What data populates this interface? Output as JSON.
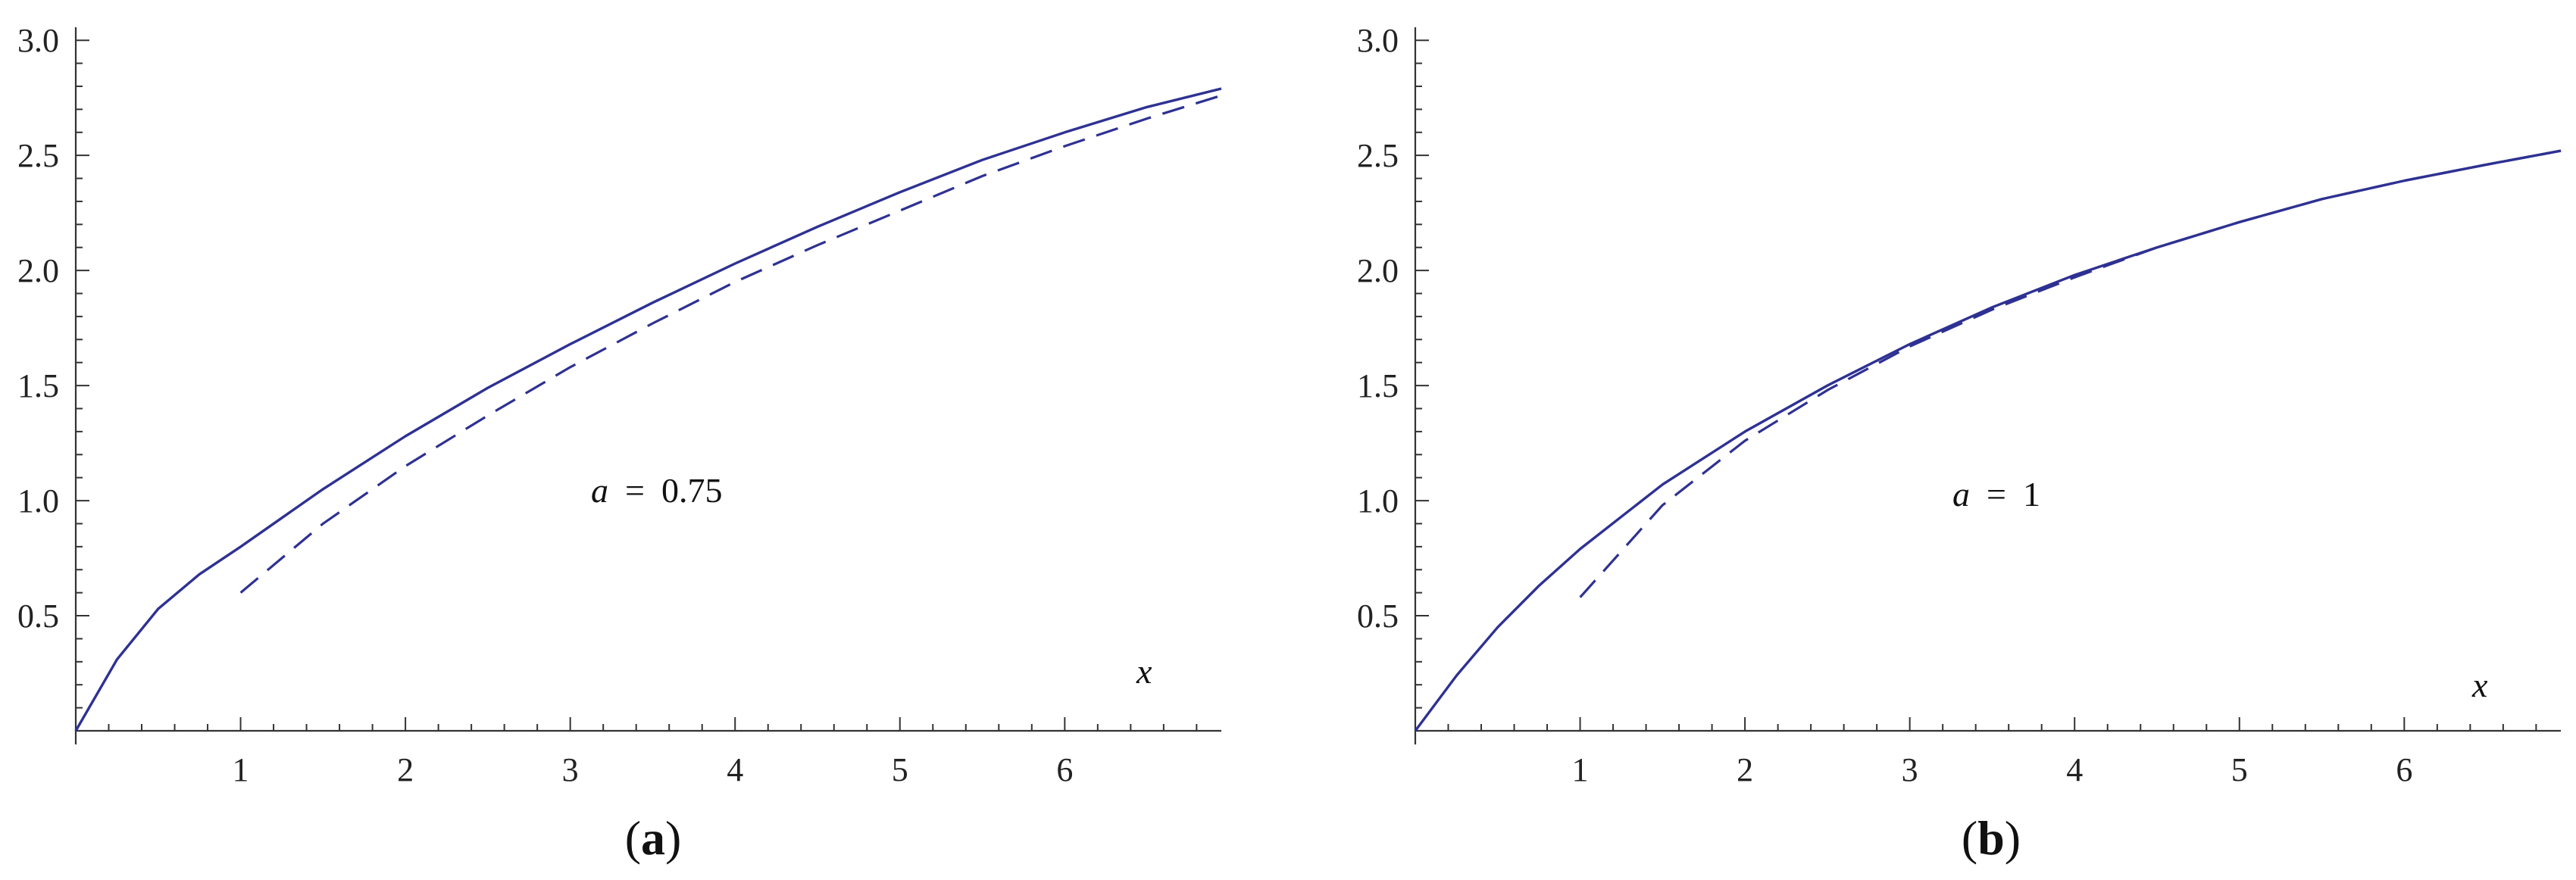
{
  "colors": {
    "curve": "#2e3192",
    "axis": "#333333"
  },
  "chart_data": [
    {
      "type": "line",
      "panel_label": "(a)",
      "panel_letter": "a",
      "xlabel": "x",
      "ylabel": "",
      "xlim": [
        0,
        6.95
      ],
      "ylim": [
        0,
        3.05
      ],
      "xticks": [
        1,
        2,
        3,
        4,
        5,
        6
      ],
      "yticks": [
        0.5,
        1.0,
        1.5,
        2.0,
        2.5,
        3.0
      ],
      "ytick_labels": [
        "0.5",
        "1.0",
        "1.5",
        "2.0",
        "2.5",
        "3.0"
      ],
      "annotation": {
        "var": "a",
        "eq": "=",
        "value": "0.75"
      },
      "series": [
        {
          "style": "solid",
          "x": [
            0,
            0.25,
            0.5,
            0.75,
            1,
            1.5,
            2,
            2.5,
            3,
            3.5,
            4,
            4.5,
            5,
            5.5,
            6,
            6.5,
            6.95
          ],
          "y": [
            0,
            0.31,
            0.53,
            0.68,
            0.8,
            1.05,
            1.28,
            1.49,
            1.68,
            1.86,
            2.03,
            2.19,
            2.34,
            2.48,
            2.6,
            2.71,
            2.79
          ]
        },
        {
          "style": "dashed",
          "x": [
            1,
            1.5,
            2,
            2.5,
            3,
            3.5,
            4,
            4.5,
            5,
            5.5,
            6,
            6.5,
            6.95
          ],
          "y": [
            0.6,
            0.9,
            1.15,
            1.37,
            1.58,
            1.77,
            1.95,
            2.11,
            2.26,
            2.41,
            2.54,
            2.66,
            2.76
          ]
        }
      ]
    },
    {
      "type": "line",
      "panel_label": "(b)",
      "panel_letter": "b",
      "xlabel": "x",
      "ylabel": "",
      "xlim": [
        0,
        6.95
      ],
      "ylim": [
        0,
        3.05
      ],
      "xticks": [
        1,
        2,
        3,
        4,
        5,
        6
      ],
      "yticks": [
        0.5,
        1.0,
        1.5,
        2.0,
        2.5,
        3.0
      ],
      "ytick_labels": [
        "0.5",
        "1.0",
        "1.5",
        "2.0",
        "2.5",
        "3.0"
      ],
      "annotation": {
        "var": "a",
        "eq": "=",
        "value": "1"
      },
      "series": [
        {
          "style": "solid",
          "x": [
            0,
            0.25,
            0.5,
            0.75,
            1,
            1.5,
            2,
            2.5,
            3,
            3.5,
            4,
            4.5,
            5,
            5.5,
            6,
            6.5,
            6.95
          ],
          "y": [
            0,
            0.24,
            0.45,
            0.63,
            0.79,
            1.07,
            1.3,
            1.5,
            1.68,
            1.84,
            1.98,
            2.1,
            2.21,
            2.31,
            2.39,
            2.46,
            2.52
          ]
        },
        {
          "style": "dashed",
          "x": [
            1,
            1.5,
            2,
            2.5,
            3,
            3.5,
            4,
            4.5,
            5,
            5.5,
            6,
            6.5,
            6.95
          ],
          "y": [
            0.58,
            0.98,
            1.26,
            1.48,
            1.67,
            1.83,
            1.97,
            2.1,
            2.21,
            2.31,
            2.39,
            2.46,
            2.52
          ]
        }
      ]
    }
  ]
}
